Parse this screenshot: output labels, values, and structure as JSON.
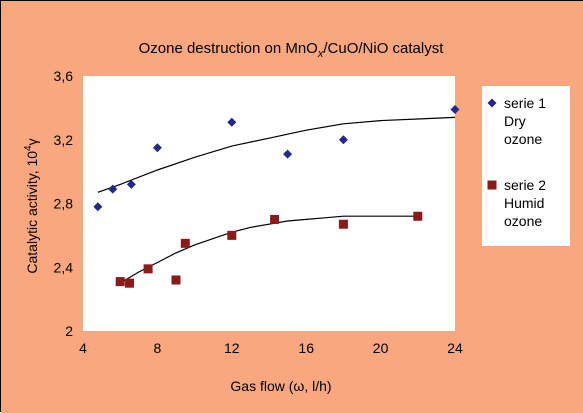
{
  "chart_data": {
    "type": "scatter",
    "title": {
      "main": "Ozone destruction on MnO",
      "sub1": "x",
      "rest": "/CuO/NiO catalyst"
    },
    "xlabel": "Gas flow (ω, l/h)",
    "ylabel": {
      "main": "Catalytic activity,  10",
      "sup": "4",
      "tail": "γ"
    },
    "xlim": [
      4,
      24
    ],
    "ylim": [
      2,
      3.6
    ],
    "x_ticks": [
      "4",
      "8",
      "12",
      "16",
      "20",
      "24"
    ],
    "y_ticks": [
      "2",
      "2,4",
      "2,8",
      "3,2",
      "3,6"
    ],
    "grid": false,
    "legend_position": "right",
    "background_color": "#F8A77E",
    "plot_background": "#FFFFFF",
    "series": [
      {
        "name": [
          "serie 1",
          "Dry",
          "ozone"
        ],
        "marker": "diamond",
        "color": "#1F2A8A",
        "points": [
          [
            4.8,
            2.78
          ],
          [
            5.6,
            2.89
          ],
          [
            6.6,
            2.92
          ],
          [
            8.0,
            3.15
          ],
          [
            12.0,
            3.31
          ],
          [
            15.0,
            3.11
          ],
          [
            18.0,
            3.2
          ],
          [
            24.0,
            3.39
          ]
        ],
        "trend": [
          [
            4.8,
            2.87
          ],
          [
            6,
            2.92
          ],
          [
            8,
            3.01
          ],
          [
            10,
            3.09
          ],
          [
            12,
            3.16
          ],
          [
            14,
            3.21
          ],
          [
            16,
            3.26
          ],
          [
            18,
            3.3
          ],
          [
            20,
            3.32
          ],
          [
            22,
            3.33
          ],
          [
            24,
            3.34
          ]
        ]
      },
      {
        "name": [
          "serie 2",
          "Humid",
          "ozone"
        ],
        "marker": "square",
        "color": "#8B1A1A",
        "points": [
          [
            6.0,
            2.31
          ],
          [
            6.5,
            2.3
          ],
          [
            7.5,
            2.39
          ],
          [
            9.0,
            2.32
          ],
          [
            9.5,
            2.55
          ],
          [
            12.0,
            2.6
          ],
          [
            14.3,
            2.7
          ],
          [
            18.0,
            2.67
          ],
          [
            22.0,
            2.72
          ]
        ],
        "trend": [
          [
            6,
            2.3
          ],
          [
            7,
            2.37
          ],
          [
            8,
            2.43
          ],
          [
            9,
            2.49
          ],
          [
            10,
            2.54
          ],
          [
            11,
            2.58
          ],
          [
            12,
            2.62
          ],
          [
            13,
            2.65
          ],
          [
            14,
            2.67
          ],
          [
            15,
            2.69
          ],
          [
            16,
            2.7
          ],
          [
            17,
            2.71
          ],
          [
            18,
            2.72
          ],
          [
            19,
            2.72
          ],
          [
            20,
            2.72
          ],
          [
            21,
            2.72
          ],
          [
            22,
            2.72
          ]
        ]
      }
    ]
  }
}
